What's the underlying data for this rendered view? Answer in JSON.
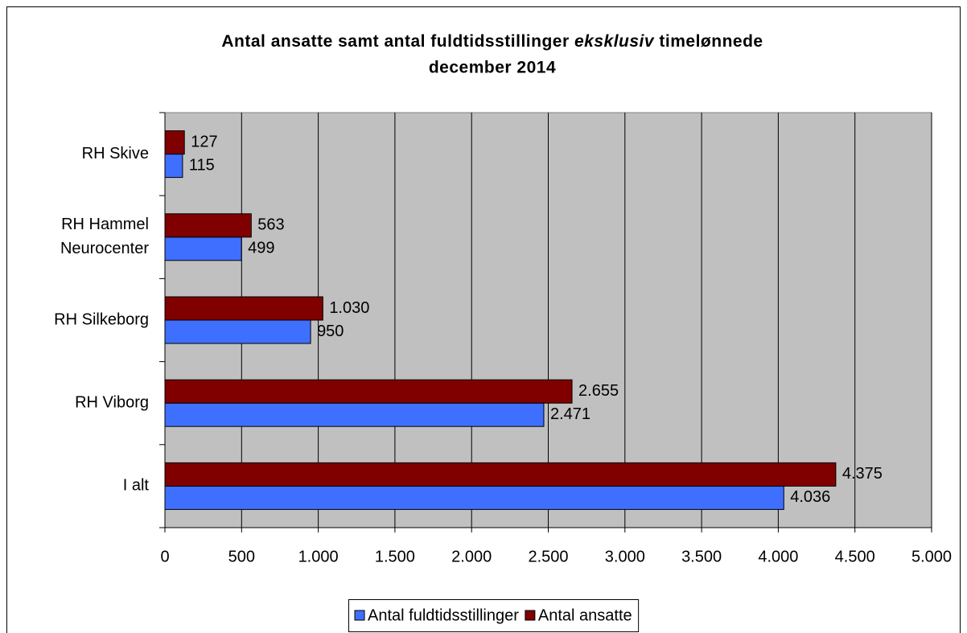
{
  "chart_data": {
    "type": "hbar",
    "title": {
      "line1": [
        "Antal ansatte samt antal fuldtidsstillinger",
        "eksklusiv",
        "timelønnede"
      ],
      "line2": "december 2014"
    },
    "categories": [
      "RH Skive",
      [
        "RH Hammel",
        "Neurocenter"
      ],
      "RH Silkeborg",
      "RH Viborg",
      "I alt"
    ],
    "series": [
      {
        "name": "Antal fuldtidsstillinger",
        "color": "#3f6fff",
        "values": [
          115,
          499,
          950,
          2471,
          4036
        ],
        "value_labels": [
          "115",
          "499",
          "950",
          "2.471",
          "4.036"
        ]
      },
      {
        "name": "Antal ansatte",
        "color": "#800000",
        "values": [
          127,
          563,
          1030,
          2655,
          4375
        ],
        "value_labels": [
          "127",
          "563",
          "1.030",
          "2.655",
          "4.375"
        ]
      }
    ],
    "xlim": [
      0,
      5000
    ],
    "xticks": [
      0,
      500,
      {
        "value": 1000,
        "label": "1.000"
      },
      {
        "value": 1500,
        "label": "1.500"
      },
      {
        "value": 2000,
        "label": "2.000"
      },
      {
        "value": 2500,
        "label": "2.500"
      },
      {
        "value": 3000,
        "label": "3.000"
      },
      {
        "value": 3500,
        "label": "3.500"
      },
      {
        "value": 4000,
        "label": "4.000"
      },
      {
        "value": 4500,
        "label": "4.500"
      },
      {
        "value": 5000,
        "label": "5.000"
      }
    ],
    "grid": true,
    "plot_background": "#c0c0c0",
    "legend": "bottom"
  }
}
